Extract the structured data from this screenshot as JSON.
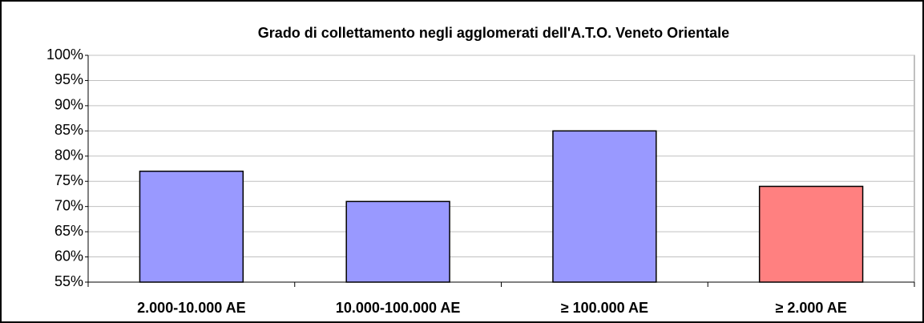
{
  "chart_data": {
    "type": "bar",
    "title": "Grado di collettamento negli agglomerati dell'A.T.O. Veneto Orientale",
    "categories": [
      "2.000-10.000 AE",
      "10.000-100.000 AE",
      "≥ 100.000 AE",
      "≥ 2.000 AE"
    ],
    "values": [
      77,
      71,
      85,
      74
    ],
    "colors": [
      "#9999ff",
      "#9999ff",
      "#9999ff",
      "#ff8080"
    ],
    "ylim": [
      55,
      100
    ],
    "yticks": [
      {
        "value": 55,
        "label": "55%"
      },
      {
        "value": 60,
        "label": "60%"
      },
      {
        "value": 65,
        "label": "65%"
      },
      {
        "value": 70,
        "label": "70%"
      },
      {
        "value": 75,
        "label": "75%"
      },
      {
        "value": 80,
        "label": "80%"
      },
      {
        "value": 85,
        "label": "85%"
      },
      {
        "value": 90,
        "label": "90%"
      },
      {
        "value": 95,
        "label": "95%"
      },
      {
        "value": 100,
        "label": "100%"
      }
    ],
    "grid": true
  }
}
